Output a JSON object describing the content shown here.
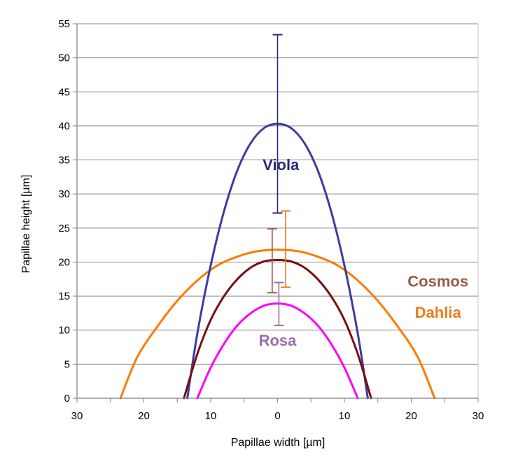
{
  "chart_data": {
    "type": "line",
    "xlabel": "Papillae width [µm]",
    "ylabel": "Papillae height [µm]",
    "xlim": [
      -30,
      30
    ],
    "ylim": [
      0,
      55
    ],
    "x_ticks": [
      -30,
      -20,
      -10,
      0,
      10,
      20,
      30
    ],
    "x_tick_labels": [
      "30",
      "20",
      "10",
      "0",
      "10",
      "20",
      "30"
    ],
    "y_ticks": [
      0,
      5,
      10,
      15,
      20,
      25,
      30,
      35,
      40,
      45,
      50,
      55
    ],
    "y_tick_labels": [
      "0",
      "5",
      "10",
      "15",
      "20",
      "25",
      "30",
      "35",
      "40",
      "45",
      "50",
      "55"
    ],
    "grid": "horizontal",
    "legend": "none",
    "series": [
      {
        "name": "Viola",
        "color": "#3c3ca0",
        "label_color": "#2a2a78",
        "label_pos": [
          0.5,
          33.5
        ],
        "x": [
          -13.5,
          -12,
          -10,
          -8,
          -6,
          -4,
          -2,
          0,
          2,
          4,
          6,
          8,
          10,
          12,
          13.5
        ],
        "y": [
          0,
          9.5,
          19.5,
          27.5,
          33.5,
          37.5,
          39.7,
          40.3,
          39.7,
          37.5,
          33.5,
          27.5,
          19.5,
          9.5,
          0
        ],
        "error_bar": {
          "x": 0,
          "low": 27.2,
          "high": 53.4
        }
      },
      {
        "name": "Dahlia",
        "color": "#ff7a00",
        "label_color": "#ee7b1a",
        "label_pos": [
          24,
          11.8
        ],
        "x": [
          -23.5,
          -21,
          -18,
          -15,
          -12,
          -9,
          -6,
          -3,
          0,
          3,
          6,
          9,
          12,
          15,
          18,
          21,
          23.5
        ],
        "y": [
          0,
          6,
          10.5,
          14.3,
          17.3,
          19.5,
          20.8,
          21.6,
          21.8,
          21.6,
          20.8,
          19.5,
          17.3,
          14.3,
          10.5,
          6,
          0
        ],
        "error_bar": {
          "x": 1.2,
          "low": 16.3,
          "high": 27.5
        }
      },
      {
        "name": "Cosmos",
        "color": "#7a0f0f",
        "label_color": "#9a5848",
        "label_pos": [
          24,
          16.4
        ],
        "x": [
          -14,
          -12,
          -10,
          -8,
          -6,
          -4,
          -2,
          0,
          2,
          4,
          6,
          8,
          10,
          12,
          14
        ],
        "y": [
          0,
          6.5,
          11.5,
          15,
          17.5,
          19.2,
          20.1,
          20.3,
          20.1,
          19.2,
          17.5,
          15,
          11.5,
          6.5,
          0
        ],
        "error_bar": {
          "x": -0.8,
          "low": 15.5,
          "high": 24.9
        }
      },
      {
        "name": "Rosa",
        "color": "#ff00ff",
        "label_color": "#a06aae",
        "label_pos": [
          0,
          7.7
        ],
        "x": [
          -12,
          -10,
          -8,
          -6,
          -4,
          -2,
          0,
          2,
          4,
          6,
          8,
          10,
          12
        ],
        "y": [
          0,
          4.5,
          8,
          10.7,
          12.5,
          13.6,
          13.9,
          13.6,
          12.5,
          10.7,
          8,
          4.5,
          0
        ],
        "error_bar": {
          "x": 0.2,
          "low": 10.7,
          "high": 17.0
        }
      }
    ]
  }
}
